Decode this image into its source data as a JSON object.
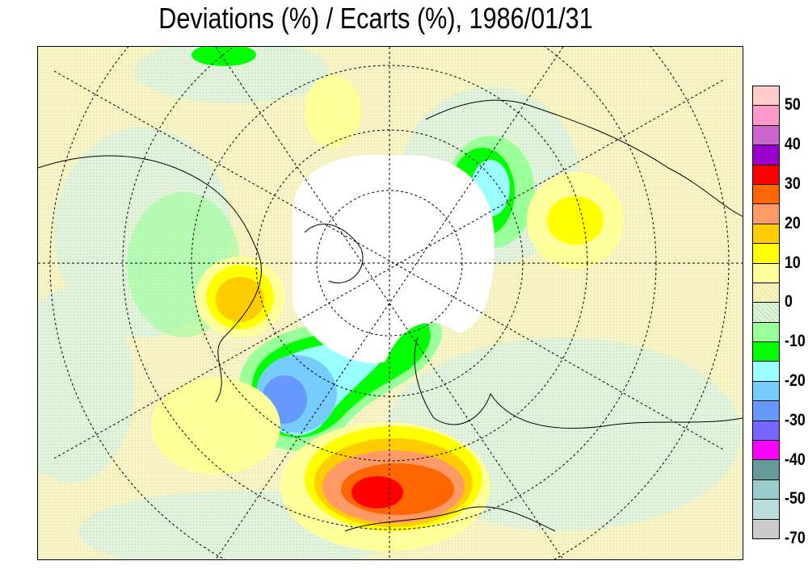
{
  "title": "Deviations (%) / Ecarts (%), 1986/01/31",
  "legend": {
    "colors": [
      "#ffcccc",
      "#ff99cc",
      "#cc66cc",
      "#9900cc",
      "#ff0000",
      "#ff6600",
      "#ff9966",
      "#ffcc00",
      "#ffff00",
      "#ffff99",
      "#f7f3c8",
      "#e2f2dc",
      "#99ff99",
      "#00ff00",
      "#99ffff",
      "#77ccff",
      "#6699ff",
      "#7766ff",
      "#ff00ff",
      "#669999",
      "#99cccc",
      "#bbdddd",
      "#cccccc"
    ],
    "labels": [
      "50",
      "40",
      "30",
      "20",
      "10",
      "0",
      "-10",
      "-20",
      "-30",
      "-40",
      "-50",
      "-70"
    ]
  }
}
